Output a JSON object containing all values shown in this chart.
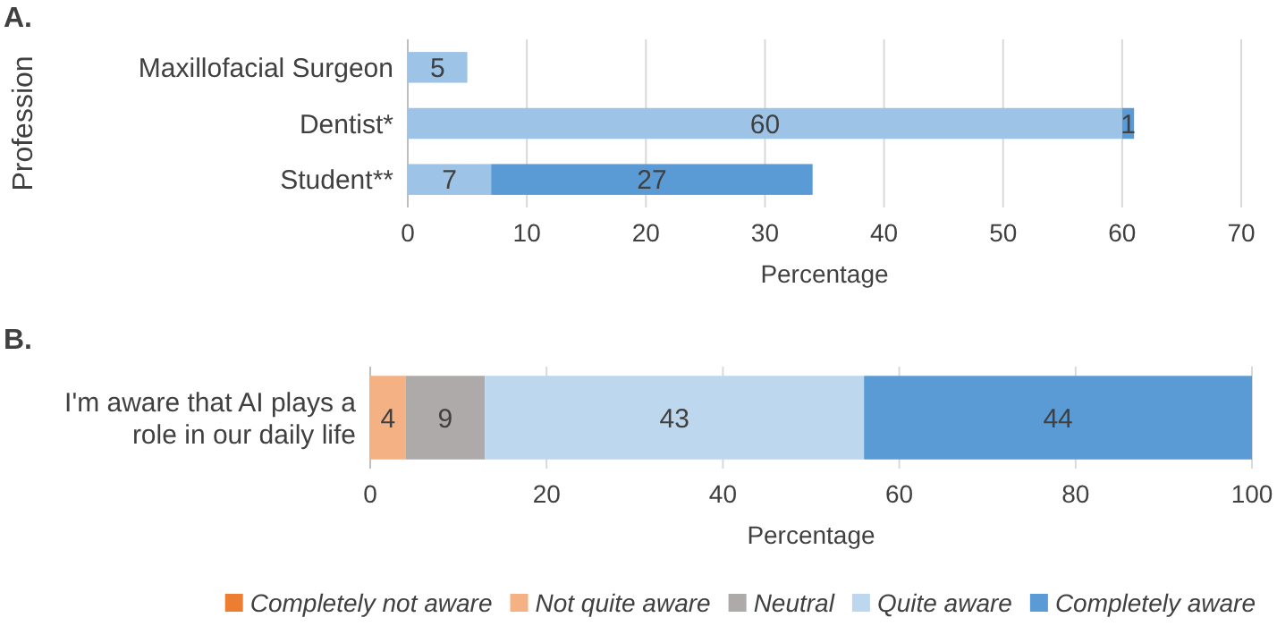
{
  "chart_data": [
    {
      "type": "bar",
      "title": "A.",
      "orientation": "horizontal",
      "stacked": true,
      "ylabel": "Profession",
      "xlabel": "Percentage",
      "categories": [
        "Maxillofacial Surgeon",
        "Dentist*",
        "Student**"
      ],
      "xlim": [
        0,
        70
      ],
      "xticks": [
        0,
        10,
        20,
        30,
        40,
        50,
        60,
        70
      ],
      "grid": "x",
      "series": [
        {
          "color": "#9dc3e6",
          "values": [
            5,
            60,
            7
          ],
          "value_labels": [
            "5",
            "60",
            "7"
          ]
        },
        {
          "color": "#5b9bd5",
          "values": [
            null,
            1,
            27
          ],
          "value_labels": [
            null,
            "1",
            "27"
          ]
        }
      ]
    },
    {
      "type": "bar",
      "title": "B.",
      "orientation": "horizontal",
      "stacked": true,
      "xlabel": "Percentage",
      "categories": [
        "I'm aware that AI plays a role in our daily life"
      ],
      "xlim": [
        0,
        100
      ],
      "xticks": [
        0,
        20,
        40,
        60,
        80,
        100
      ],
      "grid": "x",
      "legend": "bottom",
      "series": [
        {
          "name": "Completely not aware",
          "color": "#ed7d31",
          "values": [
            0
          ],
          "value_labels": [
            null
          ]
        },
        {
          "name": "Not quite aware",
          "color": "#f4b183",
          "values": [
            4
          ],
          "value_labels": [
            "4"
          ]
        },
        {
          "name": "Neutral",
          "color": "#aeaaaa",
          "values": [
            9
          ],
          "value_labels": [
            "9"
          ]
        },
        {
          "name": "Quite aware",
          "color": "#bdd7ee",
          "values": [
            43
          ],
          "value_labels": [
            "43"
          ]
        },
        {
          "name": "Completely aware",
          "color": "#5b9bd5",
          "values": [
            44
          ],
          "value_labels": [
            "44"
          ]
        }
      ]
    }
  ]
}
